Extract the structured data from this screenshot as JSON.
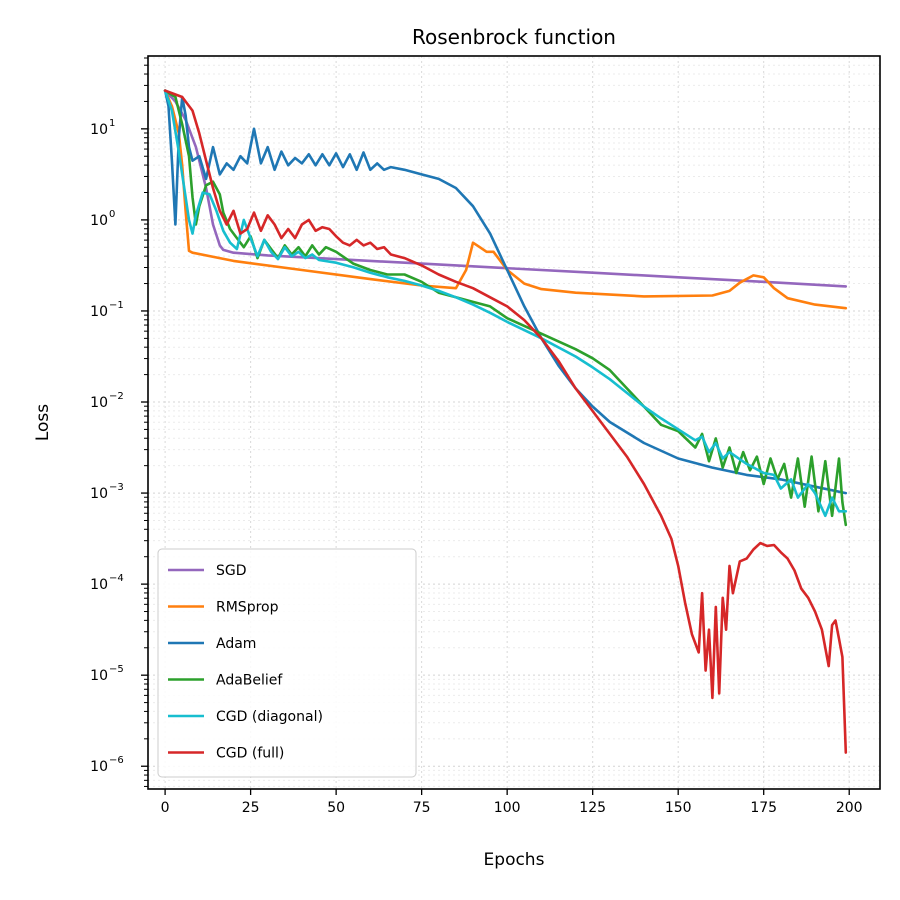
{
  "chart_data": {
    "type": "line",
    "title": "Rosenbrock function",
    "xlabel": "Epochs",
    "ylabel": "Loss",
    "xscale": "linear",
    "yscale": "log",
    "xlim": [
      -5,
      209
    ],
    "ylim_log10": [
      -6.25,
      1.8
    ],
    "xticks": [
      0,
      25,
      50,
      75,
      100,
      125,
      150,
      175,
      200
    ],
    "xtick_labels": [
      "0",
      "25",
      "50",
      "75",
      "100",
      "125",
      "150",
      "175",
      "200"
    ],
    "ytick_exponents": [
      1,
      0,
      -1,
      -2,
      -3,
      -4,
      -5,
      -6
    ],
    "ytick_base": "10",
    "grid": true,
    "legend_position": "lower-left",
    "series": [
      {
        "name": "SGD",
        "color": "#9467bd",
        "x": [
          0,
          3,
          6,
          9,
          12,
          14,
          16,
          17,
          20,
          30,
          50,
          75,
          100,
          125,
          150,
          175,
          199
        ],
        "log10": [
          1.42,
          1.3,
          1.1,
          0.8,
          0.35,
          -0.05,
          -0.28,
          -0.33,
          -0.36,
          -0.39,
          -0.43,
          -0.48,
          -0.53,
          -0.58,
          -0.63,
          -0.68,
          -0.73
        ]
      },
      {
        "name": "RMSprop",
        "color": "#ff7f0e",
        "x": [
          0,
          2,
          4,
          5,
          6,
          7,
          8,
          20,
          40,
          60,
          75,
          85,
          88,
          90,
          92,
          94,
          96,
          100,
          105,
          110,
          120,
          140,
          160,
          165,
          168,
          172,
          175,
          178,
          182,
          190,
          199
        ],
        "log10": [
          1.42,
          1.25,
          0.95,
          0.6,
          0.1,
          -0.34,
          -0.36,
          -0.45,
          -0.55,
          -0.65,
          -0.72,
          -0.75,
          -0.55,
          -0.25,
          -0.3,
          -0.35,
          -0.35,
          -0.55,
          -0.7,
          -0.76,
          -0.8,
          -0.84,
          -0.83,
          -0.78,
          -0.69,
          -0.61,
          -0.63,
          -0.75,
          -0.86,
          -0.93,
          -0.97
        ]
      },
      {
        "name": "Adam",
        "color": "#1f77b4",
        "x": [
          0,
          1,
          2,
          3,
          4,
          5,
          6,
          7,
          8,
          10,
          12,
          14,
          16,
          18,
          20,
          22,
          24,
          26,
          28,
          30,
          32,
          34,
          36,
          38,
          40,
          42,
          44,
          46,
          48,
          50,
          52,
          54,
          56,
          58,
          60,
          62,
          64,
          66,
          70,
          75,
          80,
          85,
          90,
          95,
          100,
          105,
          110,
          115,
          120,
          125,
          130,
          140,
          150,
          160,
          170,
          180,
          190,
          199
        ],
        "log10": [
          1.42,
          1.25,
          0.65,
          -0.05,
          0.9,
          1.35,
          1.15,
          0.8,
          0.65,
          0.7,
          0.45,
          0.8,
          0.5,
          0.62,
          0.55,
          0.7,
          0.62,
          1.0,
          0.62,
          0.8,
          0.55,
          0.75,
          0.6,
          0.68,
          0.62,
          0.72,
          0.6,
          0.72,
          0.6,
          0.73,
          0.58,
          0.72,
          0.55,
          0.74,
          0.55,
          0.62,
          0.55,
          0.58,
          0.55,
          0.5,
          0.45,
          0.35,
          0.15,
          -0.15,
          -0.55,
          -0.95,
          -1.3,
          -1.6,
          -1.85,
          -2.05,
          -2.22,
          -2.45,
          -2.62,
          -2.72,
          -2.8,
          -2.85,
          -2.93,
          -3.0
        ]
      },
      {
        "name": "AdaBelief",
        "color": "#2ca02c",
        "x": [
          0,
          3,
          5,
          7,
          8,
          9,
          10,
          12,
          14,
          16,
          17,
          19,
          21,
          23,
          25,
          27,
          29,
          31,
          33,
          35,
          37,
          39,
          41,
          43,
          45,
          47,
          50,
          55,
          60,
          65,
          70,
          75,
          80,
          85,
          90,
          95,
          100,
          110,
          120,
          125,
          130,
          135,
          140,
          145,
          150,
          155,
          157,
          159,
          161,
          163,
          165,
          167,
          169,
          171,
          173,
          175,
          177,
          179,
          181,
          183,
          185,
          187,
          189,
          191,
          193,
          195,
          197,
          198,
          199
        ],
        "log10": [
          1.42,
          1.35,
          1.05,
          0.7,
          0.25,
          -0.05,
          0.15,
          0.38,
          0.42,
          0.28,
          0.08,
          -0.1,
          -0.2,
          -0.3,
          -0.18,
          -0.42,
          -0.22,
          -0.32,
          -0.42,
          -0.28,
          -0.38,
          -0.3,
          -0.4,
          -0.28,
          -0.38,
          -0.3,
          -0.35,
          -0.48,
          -0.55,
          -0.6,
          -0.6,
          -0.68,
          -0.8,
          -0.85,
          -0.9,
          -0.95,
          -1.08,
          -1.25,
          -1.42,
          -1.52,
          -1.65,
          -1.85,
          -2.05,
          -2.25,
          -2.32,
          -2.5,
          -2.35,
          -2.65,
          -2.4,
          -2.72,
          -2.5,
          -2.78,
          -2.55,
          -2.75,
          -2.6,
          -2.9,
          -2.62,
          -2.85,
          -2.68,
          -3.05,
          -2.62,
          -3.15,
          -2.6,
          -3.2,
          -2.65,
          -3.25,
          -2.62,
          -3.1,
          -3.35
        ]
      },
      {
        "name": "CGD (diagonal)",
        "color": "#17becf",
        "x": [
          0,
          2,
          4,
          6,
          7,
          8,
          9,
          11,
          13,
          15,
          17,
          19,
          21,
          23,
          25,
          27,
          29,
          31,
          33,
          35,
          37,
          39,
          41,
          43,
          45,
          50,
          55,
          60,
          65,
          70,
          75,
          80,
          85,
          90,
          95,
          100,
          110,
          120,
          125,
          130,
          135,
          140,
          145,
          150,
          155,
          157,
          159,
          161,
          163,
          165,
          170,
          175,
          178,
          180,
          183,
          185,
          188,
          190,
          193,
          195,
          197,
          199
        ],
        "log10": [
          1.42,
          1.2,
          0.75,
          0.25,
          0.0,
          -0.15,
          0.05,
          0.3,
          0.28,
          0.1,
          -0.12,
          -0.25,
          -0.32,
          0.0,
          -0.2,
          -0.4,
          -0.22,
          -0.35,
          -0.43,
          -0.3,
          -0.4,
          -0.35,
          -0.42,
          -0.38,
          -0.44,
          -0.47,
          -0.52,
          -0.58,
          -0.63,
          -0.67,
          -0.72,
          -0.78,
          -0.85,
          -0.93,
          -1.02,
          -1.12,
          -1.3,
          -1.5,
          -1.62,
          -1.75,
          -1.9,
          -2.05,
          -2.18,
          -2.3,
          -2.42,
          -2.38,
          -2.55,
          -2.45,
          -2.62,
          -2.55,
          -2.68,
          -2.78,
          -2.8,
          -2.95,
          -2.85,
          -3.05,
          -2.9,
          -3.0,
          -3.25,
          -3.05,
          -3.2,
          -3.2
        ]
      },
      {
        "name": "CGD (full)",
        "color": "#d62728",
        "x": [
          0,
          5,
          8,
          10,
          12,
          14,
          16,
          18,
          20,
          22,
          24,
          26,
          28,
          30,
          32,
          34,
          36,
          38,
          40,
          42,
          44,
          46,
          48,
          50,
          52,
          54,
          56,
          58,
          60,
          62,
          64,
          66,
          70,
          75,
          80,
          85,
          90,
          95,
          100,
          105,
          110,
          115,
          120,
          125,
          130,
          135,
          140,
          145,
          148,
          150,
          152,
          154,
          156,
          157,
          158,
          159,
          160,
          161,
          162,
          163,
          164,
          165,
          166,
          168,
          170,
          172,
          174,
          176,
          178,
          180,
          182,
          184,
          186,
          188,
          190,
          192,
          194,
          195,
          196,
          197,
          198,
          199
        ],
        "log10": [
          1.42,
          1.35,
          1.2,
          0.95,
          0.65,
          0.35,
          0.1,
          -0.05,
          0.1,
          -0.15,
          -0.1,
          0.08,
          -0.12,
          0.05,
          -0.05,
          -0.2,
          -0.1,
          -0.2,
          -0.05,
          0.0,
          -0.12,
          -0.08,
          -0.1,
          -0.18,
          -0.25,
          -0.28,
          -0.22,
          -0.28,
          -0.25,
          -0.32,
          -0.3,
          -0.38,
          -0.42,
          -0.5,
          -0.6,
          -0.68,
          -0.75,
          -0.85,
          -0.95,
          -1.1,
          -1.3,
          -1.55,
          -1.85,
          -2.1,
          -2.35,
          -2.6,
          -2.9,
          -3.25,
          -3.5,
          -3.8,
          -4.2,
          -4.55,
          -4.75,
          -4.1,
          -4.95,
          -4.5,
          -5.25,
          -4.25,
          -5.2,
          -4.15,
          -4.5,
          -3.8,
          -4.1,
          -3.75,
          -3.72,
          -3.62,
          -3.55,
          -3.58,
          -3.57,
          -3.65,
          -3.72,
          -3.85,
          -4.05,
          -4.15,
          -4.3,
          -4.5,
          -4.9,
          -4.45,
          -4.4,
          -4.6,
          -4.8,
          -5.85
        ]
      }
    ]
  }
}
